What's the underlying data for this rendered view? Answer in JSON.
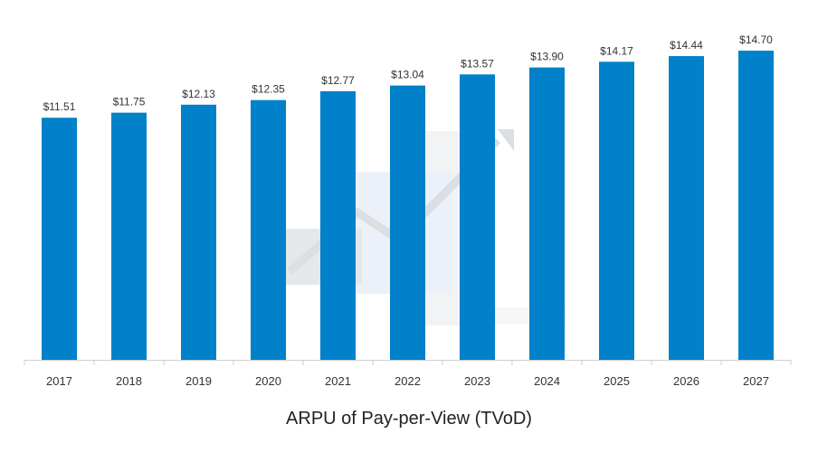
{
  "chart_data": {
    "type": "bar",
    "title": "ARPU of Pay-per-View (TVoD)",
    "categories": [
      "2017",
      "2018",
      "2019",
      "2020",
      "2021",
      "2022",
      "2023",
      "2024",
      "2025",
      "2026",
      "2027"
    ],
    "series": [
      {
        "values": [
          11.51,
          11.75,
          12.13,
          12.35,
          12.77,
          13.04,
          13.57,
          13.9,
          14.17,
          14.44,
          14.7
        ],
        "labels": [
          "$11.51",
          "$11.75",
          "$12.13",
          "$12.35",
          "$12.77",
          "$13.04",
          "$13.57",
          "$13.90",
          "$14.17",
          "$14.44",
          "$14.70"
        ]
      }
    ],
    "xlabel": "",
    "ylabel": "",
    "ylim": [
      0,
      14.7
    ],
    "grid": false,
    "legend": "none",
    "colors": {
      "bar": "#0081c9",
      "axis": "#cfcfcf",
      "label": "#333333"
    }
  }
}
